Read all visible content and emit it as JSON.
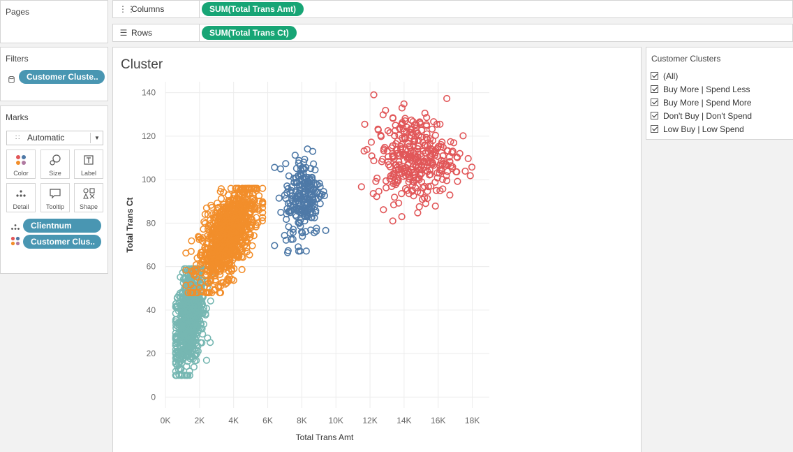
{
  "pages": {
    "title": "Pages"
  },
  "columns": {
    "label": "Columns",
    "pill": "SUM(Total Trans Amt)"
  },
  "rows": {
    "label": "Rows",
    "pill": "SUM(Total Trans Ct)"
  },
  "filters": {
    "title": "Filters",
    "pill": "Customer Cluste.."
  },
  "marks": {
    "title": "Marks",
    "type_value": "Automatic",
    "cards": [
      {
        "label": "Color",
        "icon": "color-icon"
      },
      {
        "label": "Size",
        "icon": "size-icon"
      },
      {
        "label": "Label",
        "icon": "label-icon"
      },
      {
        "label": "Detail",
        "icon": "detail-icon"
      },
      {
        "label": "Tooltip",
        "icon": "tooltip-icon"
      },
      {
        "label": "Shape",
        "icon": "shape-icon"
      }
    ],
    "fields": [
      {
        "label": "Clientnum",
        "icon": "detail-icon"
      },
      {
        "label": "Customer Clus..",
        "icon": "color-icon"
      }
    ]
  },
  "legend": {
    "title": "Customer Clusters",
    "items": [
      "(All)",
      "Buy More | Spend Less",
      "Buy More | Spend More",
      "Don't Buy | Don't Spend",
      "Low Buy | Low Spend"
    ]
  },
  "colors": {
    "buy_more_spend_less": "#f28e2b",
    "buy_more_spend_more": "#4e79a7",
    "dont_buy_dont_spend": "#76b7b2",
    "low_buy_low_spend": "#e15759",
    "pill_green": "#17a575",
    "pill_blue": "#4996b2"
  },
  "chart_data": {
    "type": "scatter",
    "title": "Cluster",
    "xlabel": "Total Trans Amt",
    "ylabel": "Total Trans Ct",
    "xlim": [
      0,
      19000
    ],
    "ylim": [
      -5,
      145
    ],
    "xticks": [
      "0K",
      "2K",
      "4K",
      "6K",
      "8K",
      "10K",
      "12K",
      "14K",
      "16K",
      "18K"
    ],
    "xtick_values": [
      0,
      2000,
      4000,
      6000,
      8000,
      10000,
      12000,
      14000,
      16000,
      18000
    ],
    "yticks": [
      0,
      20,
      40,
      60,
      80,
      100,
      120,
      140
    ],
    "grid": true,
    "marker": "open-circle",
    "series": [
      {
        "name": "Don't Buy | Don't Spend",
        "color": "#76b7b2",
        "n": 700,
        "x_range": [
          600,
          3700
        ],
        "y_range": [
          10,
          59
        ],
        "center": [
          1400,
          36
        ],
        "spread": [
          450,
          11
        ],
        "slope": 0.009
      },
      {
        "name": "Buy More | Spend Less",
        "color": "#f28e2b",
        "n": 900,
        "x_range": [
          1200,
          5700
        ],
        "y_range": [
          48,
          96
        ],
        "center": [
          3600,
          74
        ],
        "spread": [
          800,
          9
        ],
        "slope": 0.008
      },
      {
        "name": "Buy More | Spend More",
        "color": "#4e79a7",
        "n": 220,
        "x_range": [
          6400,
          9400
        ],
        "y_range": [
          64,
          122
        ],
        "center": [
          8100,
          92
        ],
        "spread": [
          550,
          10
        ],
        "slope": 0.004
      },
      {
        "name": "Low Buy | Low Spend",
        "color": "#e15759",
        "n": 330,
        "x_range": [
          11500,
          18600
        ],
        "y_range": [
          81,
          139
        ],
        "center": [
          14600,
          110
        ],
        "spread": [
          1200,
          10
        ],
        "slope": 0.0
      }
    ]
  }
}
